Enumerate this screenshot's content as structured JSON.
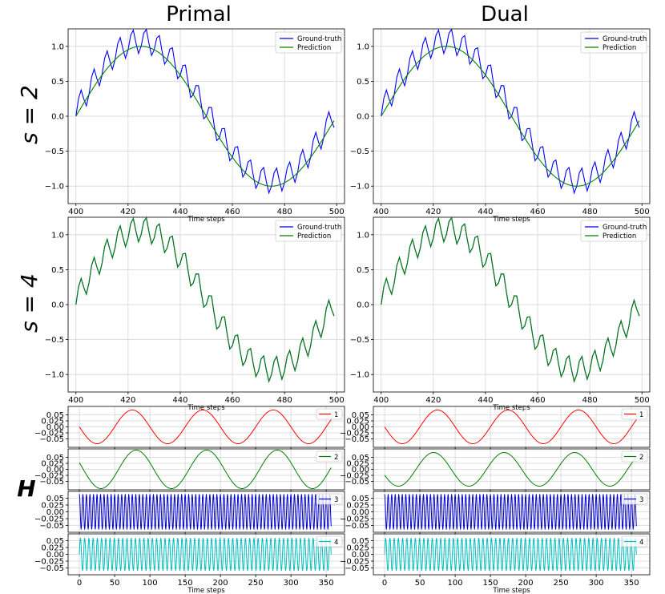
{
  "figure": {
    "col_titles": [
      "Primal",
      "Dual"
    ],
    "row_labels": [
      "s = 2",
      "s = 4"
    ],
    "h_label": "H",
    "xlabel": "Time steps",
    "colors": {
      "ground_truth": "#0000ff",
      "prediction": "#008000",
      "h": [
        "#ff0000",
        "#008000",
        "#0000cc",
        "#00bfbf"
      ],
      "grid": "#d3d3d3",
      "axes": "#000000"
    }
  },
  "chart_data": [
    {
      "id": "primal-s2",
      "type": "line",
      "title": "",
      "xlabel": "Time steps",
      "ylabel": "",
      "xlim": [
        397,
        503
      ],
      "ylim": [
        -1.25,
        1.25
      ],
      "xticks": [
        400,
        420,
        440,
        460,
        480,
        500
      ],
      "yticks": [
        -1.0,
        -0.5,
        0.0,
        0.5,
        1.0
      ],
      "ytick_labels": [
        "−1.0",
        "−0.5",
        "0.0",
        "0.5",
        "1.0"
      ],
      "grid": true,
      "legend": "top-right",
      "series": [
        {
          "name": "Ground-truth",
          "color": "#0000ff",
          "kind": "ground_truth",
          "x_range": [
            400,
            499
          ]
        },
        {
          "name": "Prediction",
          "color": "#008000",
          "kind": "sine",
          "x_range": [
            400,
            499
          ]
        }
      ]
    },
    {
      "id": "dual-s2",
      "type": "line",
      "title": "",
      "xlabel": "Time steps",
      "ylabel": "",
      "xlim": [
        397,
        503
      ],
      "ylim": [
        -1.25,
        1.25
      ],
      "xticks": [
        400,
        420,
        440,
        460,
        480,
        500
      ],
      "yticks": [
        -1.0,
        -0.5,
        0.0,
        0.5,
        1.0
      ],
      "ytick_labels": [
        "−1.0",
        "−0.5",
        "0.0",
        "0.5",
        "1.0"
      ],
      "grid": true,
      "legend": "top-right",
      "series": [
        {
          "name": "Ground-truth",
          "color": "#0000ff",
          "kind": "ground_truth",
          "x_range": [
            400,
            499
          ]
        },
        {
          "name": "Prediction",
          "color": "#008000",
          "kind": "sine",
          "x_range": [
            400,
            499
          ]
        }
      ]
    },
    {
      "id": "primal-s4",
      "type": "line",
      "title": "",
      "xlabel": "Time steps",
      "ylabel": "",
      "xlim": [
        397,
        503
      ],
      "ylim": [
        -1.25,
        1.25
      ],
      "xticks": [
        400,
        420,
        440,
        460,
        480,
        500
      ],
      "yticks": [
        -1.0,
        -0.5,
        0.0,
        0.5,
        1.0
      ],
      "ytick_labels": [
        "−1.0",
        "−0.5",
        "0.0",
        "0.5",
        "1.0"
      ],
      "grid": true,
      "legend": "top-right",
      "series": [
        {
          "name": "Ground-truth",
          "color": "#0000ff",
          "kind": "ground_truth",
          "x_range": [
            400,
            499
          ]
        },
        {
          "name": "Prediction",
          "color": "#008000",
          "kind": "ground_truth",
          "x_range": [
            400,
            499
          ]
        }
      ]
    },
    {
      "id": "dual-s4",
      "type": "line",
      "title": "",
      "xlabel": "Time steps",
      "ylabel": "",
      "xlim": [
        397,
        503
      ],
      "ylim": [
        -1.25,
        1.25
      ],
      "xticks": [
        400,
        420,
        440,
        460,
        480,
        500
      ],
      "yticks": [
        -1.0,
        -0.5,
        0.0,
        0.5,
        1.0
      ],
      "ytick_labels": [
        "−1.0",
        "−0.5",
        "0.0",
        "0.5",
        "1.0"
      ],
      "grid": true,
      "legend": "top-right",
      "series": [
        {
          "name": "Ground-truth",
          "color": "#0000ff",
          "kind": "ground_truth",
          "x_range": [
            400,
            499
          ]
        },
        {
          "name": "Prediction",
          "color": "#008000",
          "kind": "ground_truth",
          "x_range": [
            400,
            499
          ]
        }
      ]
    },
    {
      "id": "primal-h1",
      "type": "line",
      "xlim": [
        -16,
        376
      ],
      "ylim": [
        -0.085,
        0.085
      ],
      "yticks": [
        -0.05,
        -0.025,
        0.0,
        0.025,
        0.05
      ],
      "ytick_labels": [
        "−0.05",
        "−0.025",
        "0.00",
        "0.025",
        "0.05"
      ],
      "grid": true,
      "legend": "top-right",
      "series": [
        {
          "name": "1",
          "color": "#ff0000",
          "amplitude": 0.07,
          "period": 100,
          "phase_deg": 180,
          "x_range": [
            0,
            357
          ]
        }
      ]
    },
    {
      "id": "primal-h2",
      "type": "line",
      "xlim": [
        -16,
        376
      ],
      "ylim": [
        -0.085,
        0.085
      ],
      "yticks": [
        -0.05,
        -0.025,
        0.0,
        0.025,
        0.05
      ],
      "ytick_labels": [
        "−0.05",
        "−0.025",
        "0.00",
        "0.025",
        "0.05"
      ],
      "grid": true,
      "legend": "top-right",
      "series": [
        {
          "name": "2",
          "color": "#008000",
          "amplitude": 0.08,
          "period": 100,
          "phase_deg": 160,
          "x_range": [
            0,
            357
          ]
        }
      ]
    },
    {
      "id": "primal-h3",
      "type": "line",
      "xlim": [
        -16,
        376
      ],
      "ylim": [
        -0.075,
        0.075
      ],
      "yticks": [
        -0.05,
        -0.025,
        0.0,
        0.025,
        0.05
      ],
      "ytick_labels": [
        "−0.05",
        "−0.025",
        "0.00",
        "0.025",
        "0.05"
      ],
      "grid": true,
      "legend": "top-right",
      "series": [
        {
          "name": "3",
          "color": "#0000cc",
          "amplitude": 0.065,
          "period": 5,
          "phase_deg": 90,
          "x_range": [
            0,
            357
          ]
        }
      ]
    },
    {
      "id": "primal-h4",
      "type": "line",
      "xlim": [
        -16,
        376
      ],
      "ylim": [
        -0.075,
        0.075
      ],
      "xticks": [
        0,
        50,
        100,
        150,
        200,
        250,
        300,
        350
      ],
      "xlabel": "Time steps",
      "yticks": [
        -0.05,
        -0.025,
        0.0,
        0.025,
        0.05
      ],
      "ytick_labels": [
        "−0.05",
        "−0.025",
        "0.00",
        "0.025",
        "0.05"
      ],
      "grid": true,
      "legend": "top-right",
      "series": [
        {
          "name": "4",
          "color": "#00bfbf",
          "amplitude": 0.06,
          "period": 6,
          "phase_deg": 0,
          "x_range": [
            0,
            357
          ]
        }
      ]
    },
    {
      "id": "dual-h1",
      "type": "line",
      "xlim": [
        -16,
        376
      ],
      "ylim": [
        -0.085,
        0.085
      ],
      "yticks": [
        -0.05,
        -0.025,
        0.0,
        0.025,
        0.05
      ],
      "ytick_labels": [
        "−0.05",
        "−0.025",
        "0.00",
        "0.025",
        "0.05"
      ],
      "grid": true,
      "legend": "top-right",
      "series": [
        {
          "name": "1",
          "color": "#ff0000",
          "amplitude": 0.07,
          "period": 100,
          "phase_deg": 180,
          "x_range": [
            0,
            357
          ]
        }
      ]
    },
    {
      "id": "dual-h2",
      "type": "line",
      "xlim": [
        -16,
        376
      ],
      "ylim": [
        -0.085,
        0.085
      ],
      "yticks": [
        -0.05,
        -0.025,
        0.0,
        0.025,
        0.05
      ],
      "ytick_labels": [
        "−0.05",
        "−0.025",
        "0.00",
        "0.025",
        "0.05"
      ],
      "grid": true,
      "legend": "top-right",
      "series": [
        {
          "name": "2",
          "color": "#008000",
          "amplitude": 0.07,
          "period": 100,
          "phase_deg": 200,
          "x_range": [
            0,
            357
          ]
        }
      ]
    },
    {
      "id": "dual-h3",
      "type": "line",
      "xlim": [
        -16,
        376
      ],
      "ylim": [
        -0.075,
        0.075
      ],
      "yticks": [
        -0.05,
        -0.025,
        0.0,
        0.025,
        0.05
      ],
      "ytick_labels": [
        "−0.05",
        "−0.025",
        "0.00",
        "0.025",
        "0.05"
      ],
      "grid": true,
      "legend": "top-right",
      "series": [
        {
          "name": "3",
          "color": "#0000cc",
          "amplitude": 0.065,
          "period": 5,
          "phase_deg": 90,
          "x_range": [
            0,
            357
          ]
        }
      ]
    },
    {
      "id": "dual-h4",
      "type": "line",
      "xlim": [
        -16,
        376
      ],
      "ylim": [
        -0.075,
        0.075
      ],
      "xticks": [
        0,
        50,
        100,
        150,
        200,
        250,
        300,
        350
      ],
      "xlabel": "Time steps",
      "yticks": [
        -0.05,
        -0.025,
        0.0,
        0.025,
        0.05
      ],
      "ytick_labels": [
        "−0.05",
        "−0.025",
        "0.00",
        "0.025",
        "0.05"
      ],
      "grid": true,
      "legend": "top-right",
      "series": [
        {
          "name": "4",
          "color": "#00bfbf",
          "amplitude": 0.06,
          "period": 6,
          "phase_deg": 0,
          "x_range": [
            0,
            357
          ]
        }
      ]
    }
  ]
}
